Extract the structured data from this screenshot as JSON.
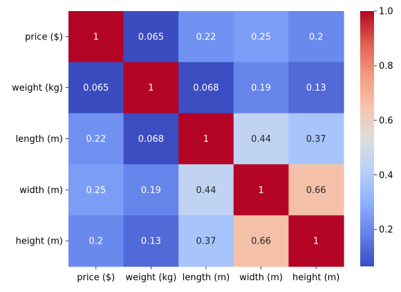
{
  "chart_data": {
    "type": "heatmap",
    "title": "",
    "xlabel": "",
    "ylabel": "",
    "rows": [
      "price ($)",
      "weight (kg)",
      "length (m)",
      "width (m)",
      "height (m)"
    ],
    "columns": [
      "price ($)",
      "weight (kg)",
      "length (m)",
      "width (m)",
      "height (m)"
    ],
    "values": [
      [
        1,
        0.065,
        0.22,
        0.25,
        0.2
      ],
      [
        0.065,
        1,
        0.068,
        0.19,
        0.13
      ],
      [
        0.22,
        0.068,
        1,
        0.44,
        0.37
      ],
      [
        0.25,
        0.19,
        0.44,
        1,
        0.66
      ],
      [
        0.2,
        0.13,
        0.37,
        0.66,
        1
      ]
    ],
    "annotations": [
      [
        "1",
        "0.065",
        "0.22",
        "0.25",
        "0.2"
      ],
      [
        "0.065",
        "1",
        "0.068",
        "0.19",
        "0.13"
      ],
      [
        "0.22",
        "0.068",
        "1",
        "0.44",
        "0.37"
      ],
      [
        "0.25",
        "0.19",
        "0.44",
        "1",
        "0.66"
      ],
      [
        "0.2",
        "0.13",
        "0.37",
        "0.66",
        "1"
      ]
    ],
    "colormap": "coolwarm",
    "colorbar": {
      "range": [
        0.065,
        1.0
      ],
      "ticks": [
        0.2,
        0.4,
        0.6,
        0.8,
        1.0
      ],
      "tick_labels": [
        "0.2",
        "0.4",
        "0.6",
        "0.8",
        "1.0"
      ]
    },
    "colors": {
      "low": "#3b4cc0",
      "mid": "#dddddd",
      "high": "#b40426",
      "annotation_light": "#ffffff",
      "annotation_dark": "#262626"
    }
  }
}
